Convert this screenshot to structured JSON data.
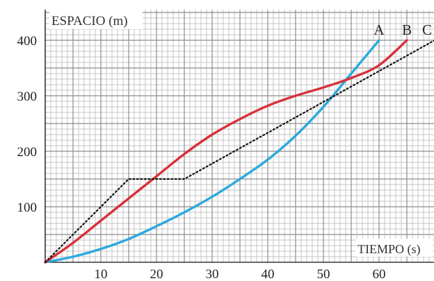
{
  "chart_data": {
    "type": "line",
    "xlabel": "TIEMPO (s)",
    "ylabel": "ESPACIO (m)",
    "xlim": [
      0,
      70
    ],
    "ylim": [
      0,
      420
    ],
    "x_ticks": [
      10,
      20,
      30,
      40,
      50,
      60
    ],
    "y_ticks": [
      100,
      200,
      300,
      400
    ],
    "grid": true,
    "series": [
      {
        "name": "A",
        "color": "#2aa9dd",
        "style": "solid",
        "points": [
          [
            0,
            0
          ],
          [
            5,
            10
          ],
          [
            10,
            24
          ],
          [
            15,
            42
          ],
          [
            20,
            65
          ],
          [
            25,
            90
          ],
          [
            30,
            118
          ],
          [
            35,
            150
          ],
          [
            40,
            185
          ],
          [
            45,
            228
          ],
          [
            50,
            280
          ],
          [
            55,
            340
          ],
          [
            60,
            400
          ]
        ]
      },
      {
        "name": "B",
        "color": "#d9303a",
        "style": "solid",
        "points": [
          [
            0,
            0
          ],
          [
            5,
            35
          ],
          [
            10,
            75
          ],
          [
            15,
            115
          ],
          [
            20,
            155
          ],
          [
            25,
            195
          ],
          [
            30,
            230
          ],
          [
            35,
            258
          ],
          [
            40,
            282
          ],
          [
            45,
            300
          ],
          [
            50,
            315
          ],
          [
            55,
            332
          ],
          [
            60,
            355
          ],
          [
            65,
            400
          ]
        ]
      },
      {
        "name": "C",
        "color": "#111111",
        "style": "dotted",
        "points": [
          [
            0,
            0
          ],
          [
            15,
            150
          ],
          [
            25,
            150
          ],
          [
            70,
            400
          ]
        ]
      }
    ]
  }
}
